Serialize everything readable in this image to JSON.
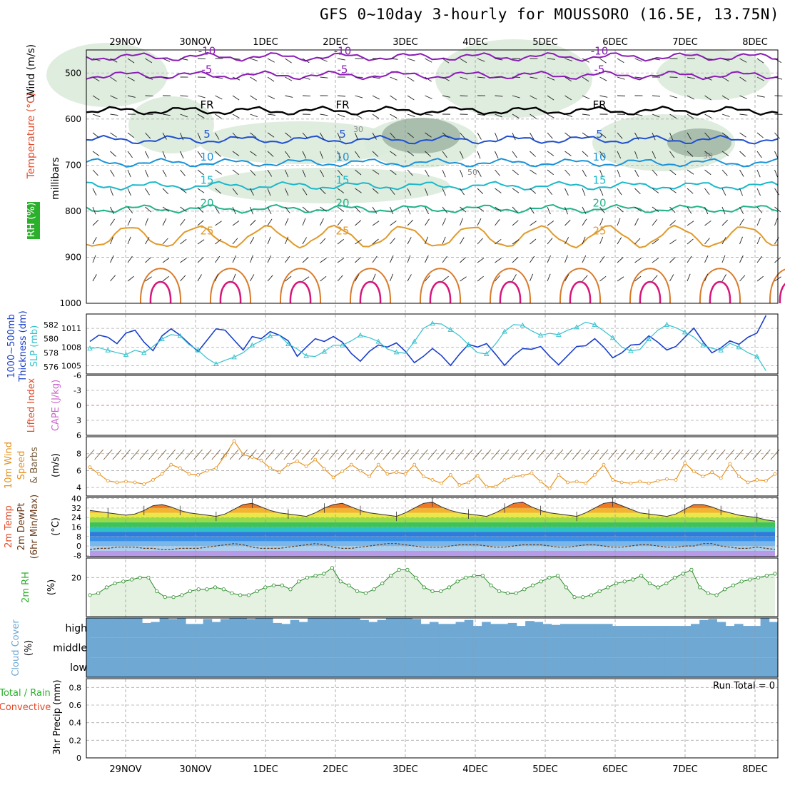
{
  "title": "GFS 0~10day 3-hourly for MOUSSORO (16.5E, 13.75N)",
  "chart_data": [
    {
      "type": "line",
      "panel": "upper-air",
      "x_date_labels": [
        "29NOV",
        "30NOV",
        "1DEC",
        "2DEC",
        "3DEC",
        "4DEC",
        "5DEC",
        "6DEC",
        "7DEC",
        "8DEC"
      ],
      "ylabel_parts": [
        "Wind (m/s)",
        "Temperature (°C)",
        "RH (%)",
        "millibars"
      ],
      "yticks": [
        "500",
        "600",
        "700",
        "800",
        "900",
        "1000"
      ],
      "ylim": [
        1000,
        450
      ],
      "temperature_isotherms": [
        {
          "label": "-10",
          "pressure": 465
        },
        {
          "label": "-5",
          "pressure": 505
        },
        {
          "label": "FR",
          "pressure": 582
        },
        {
          "label": "5",
          "pressure": 645
        },
        {
          "label": "10",
          "pressure": 695
        },
        {
          "label": "15",
          "pressure": 745
        },
        {
          "label": "20",
          "pressure": 795
        },
        {
          "label": "25",
          "pressure": 855
        }
      ],
      "rh_contour_labels": [
        "30",
        "50"
      ]
    },
    {
      "type": "line",
      "panel": "thickness-slp",
      "ylabel_parts": [
        "1000~500mb",
        "Thickness (dm)",
        "SLP (mb)"
      ],
      "left_ticks": [
        "576",
        "578",
        "580",
        "582"
      ],
      "right_ticks": [
        "1005",
        "1008",
        "1011"
      ],
      "series": [
        {
          "name": "Thickness",
          "unit": "dm",
          "values": [
            579.6,
            580.5,
            580.2,
            579.3,
            580.8,
            581.2,
            579.5,
            578.3,
            580.4,
            581.4,
            580.5,
            579.3,
            578.2,
            579.8,
            581.4,
            581.2,
            579.8,
            578.4,
            580.3,
            580.0,
            581.0,
            580.5,
            579.7,
            577.5,
            578.8,
            580.0,
            579.6,
            580.3,
            579.5,
            577.9,
            576.8,
            578.2,
            579.1,
            578.8,
            579.4,
            578.2,
            576.6,
            577.5,
            578.6,
            577.6,
            576.2,
            577.8,
            579.2,
            578.8,
            579.3,
            577.8,
            576.2,
            577.6,
            578.6,
            578.5,
            578.9,
            577.5,
            576.3,
            577.6,
            578.9,
            579.0,
            580.0,
            578.8,
            577.3,
            578.0,
            579.1,
            579.2,
            580.4,
            579.5,
            578.4,
            578.9,
            580.2,
            581.5,
            579.6,
            578.0,
            578.7,
            579.7,
            579.2,
            580.2,
            580.8,
            583.3
          ]
        },
        {
          "name": "SLP",
          "unit": "mb",
          "values": [
            1007.8,
            1007.9,
            1007.5,
            1007.1,
            1006.8,
            1007.5,
            1007.1,
            1008.1,
            1009.3,
            1010.0,
            1009.8,
            1008.4,
            1007.5,
            1006.2,
            1005.3,
            1005.9,
            1006.4,
            1007.1,
            1008.3,
            1009.0,
            1009.8,
            1009.9,
            1008.5,
            1007.7,
            1006.6,
            1006.5,
            1007.3,
            1008.3,
            1008.3,
            1009.0,
            1009.9,
            1009.5,
            1008.9,
            1007.7,
            1007.2,
            1007.0,
            1008.9,
            1011.0,
            1011.8,
            1011.7,
            1010.8,
            1009.8,
            1008.4,
            1007.1,
            1006.9,
            1008.5,
            1010.5,
            1011.6,
            1011.5,
            1010.6,
            1009.9,
            1010.2,
            1010.0,
            1010.7,
            1011.2,
            1012.0,
            1011.6,
            1010.6,
            1009.5,
            1008.0,
            1007.4,
            1007.6,
            1009.3,
            1010.7,
            1011.6,
            1011.1,
            1010.4,
            1009.6,
            1008.3,
            1007.8,
            1007.5,
            1008.6,
            1008.0,
            1007.1,
            1006.5,
            1004.2
          ]
        }
      ]
    },
    {
      "type": "line",
      "panel": "cape-li",
      "ylabel_parts": [
        "Lifted Index",
        "CAPE (J/kg)"
      ],
      "yticks": [
        "-6",
        "-3",
        "0",
        "3",
        "6"
      ],
      "ylim": [
        -6,
        6
      ],
      "series": [
        {
          "name": "Lifted Index",
          "values": []
        },
        {
          "name": "CAPE",
          "values": []
        }
      ]
    },
    {
      "type": "line",
      "panel": "10m-wind",
      "ylabel_parts": [
        "10m Wind",
        "Speed",
        "& Barbs",
        "(m/s)"
      ],
      "yticks": [
        "4",
        "6",
        "8"
      ],
      "ylim": [
        3,
        10
      ],
      "series": [
        {
          "name": "10m Wind Speed",
          "unit": "m/s",
          "values": [
            6.4,
            5.6,
            4.8,
            4.6,
            4.7,
            4.6,
            4.4,
            4.9,
            5.6,
            6.7,
            6.3,
            5.6,
            5.5,
            6.0,
            6.3,
            7.8,
            9.5,
            7.9,
            7.6,
            7.2,
            6.3,
            5.8,
            6.7,
            7.1,
            6.5,
            7.3,
            6.2,
            5.2,
            5.9,
            6.7,
            6.0,
            5.3,
            6.7,
            5.6,
            5.8,
            5.6,
            6.7,
            5.3,
            4.9,
            4.5,
            5.5,
            4.3,
            4.6,
            5.4,
            4.1,
            4.1,
            4.9,
            5.3,
            5.4,
            5.7,
            4.7,
            3.9,
            5.5,
            4.6,
            4.7,
            4.5,
            5.5,
            6.7,
            4.9,
            4.6,
            4.5,
            4.7,
            4.5,
            4.8,
            5.0,
            4.9,
            6.9,
            5.9,
            5.3,
            5.8,
            5.1,
            6.8,
            5.3,
            4.6,
            4.9,
            4.8,
            5.6
          ]
        }
      ]
    },
    {
      "type": "area",
      "panel": "2m-temp",
      "ylabel_parts": [
        "2m Temp",
        "2m DewPt",
        "(6hr Min/Max)",
        "(°C)"
      ],
      "yticks": [
        "-8",
        "0",
        "8",
        "16",
        "24",
        "32",
        "40"
      ],
      "ylim": [
        -8,
        40
      ],
      "series": [
        {
          "name": "2m Temp",
          "unit": "°C",
          "values": [
            30,
            29,
            28,
            27,
            26,
            27,
            30,
            34,
            35,
            33,
            30,
            28,
            27,
            26,
            25,
            27,
            31,
            35,
            36,
            33,
            30,
            28,
            27,
            26,
            25,
            28,
            32,
            35,
            36,
            33,
            30,
            28,
            27,
            26,
            25,
            28,
            32,
            36,
            37,
            33,
            30,
            28,
            27,
            26,
            25,
            28,
            32,
            36,
            37,
            33,
            30,
            28,
            27,
            26,
            25,
            28,
            32,
            36,
            37,
            34,
            31,
            28,
            27,
            26,
            25,
            27,
            31,
            35,
            35,
            33,
            30,
            28,
            26,
            25,
            24,
            22,
            21
          ]
        },
        {
          "name": "2m DewPt",
          "unit": "°C",
          "values": [
            -3,
            -2,
            -2,
            -1,
            -1,
            -1,
            -2,
            -2,
            -3,
            -3,
            -2,
            -2,
            -2,
            -1,
            0,
            1,
            2,
            1,
            -1,
            -2,
            -2,
            -2,
            -1,
            0,
            1,
            2,
            1,
            -1,
            -2,
            -2,
            -1,
            0,
            1,
            2,
            2,
            1,
            0,
            -1,
            -1,
            -1,
            0,
            1,
            1,
            1,
            0,
            -1,
            -1,
            0,
            1,
            1,
            1,
            0,
            -1,
            -1,
            0,
            1,
            1,
            0,
            -1,
            -1,
            0,
            1,
            1,
            0,
            -1,
            -1,
            0,
            0,
            2,
            2,
            0,
            -1,
            -2,
            -2,
            -1,
            -2,
            -3
          ]
        }
      ]
    },
    {
      "type": "area",
      "panel": "2m-rh",
      "ylabel_parts": [
        "2m RH",
        "(%)"
      ],
      "yticks": [
        "20"
      ],
      "ylim": [
        0,
        30
      ],
      "series": [
        {
          "name": "2m RH",
          "unit": "%",
          "values": [
            11,
            12,
            15,
            17,
            18,
            19,
            20,
            20,
            13,
            10,
            10,
            11,
            13,
            14,
            14,
            15,
            14,
            12,
            11,
            11,
            13,
            15,
            16,
            16,
            14,
            18,
            20,
            21,
            22,
            25,
            18,
            16,
            13,
            12,
            14,
            17,
            21,
            24,
            24,
            20,
            15,
            13,
            13,
            15,
            18,
            20,
            21,
            21,
            16,
            13,
            12,
            12,
            14,
            16,
            18,
            20,
            21,
            15,
            10,
            10,
            11,
            13,
            15,
            17,
            18,
            19,
            21,
            17,
            15,
            17,
            20,
            22,
            24,
            15,
            12,
            11,
            14,
            16,
            18,
            19,
            20,
            21,
            22
          ]
        }
      ]
    },
    {
      "type": "bar",
      "panel": "cloud-cover",
      "ylabel_parts": [
        "Cloud Cover",
        "(%)"
      ],
      "level_labels": [
        "high",
        "middle",
        "low"
      ],
      "series": [
        {
          "name": "high cloud cover",
          "unit": "%",
          "values": [
            100,
            98,
            98,
            100,
            100,
            100,
            75,
            80,
            100,
            95,
            100,
            70,
            70,
            95,
            80,
            95,
            100,
            100,
            95,
            100,
            100,
            75,
            70,
            90,
            80,
            100,
            100,
            100,
            100,
            100,
            100,
            90,
            80,
            90,
            100,
            100,
            100,
            95,
            70,
            80,
            70,
            70,
            80,
            90,
            60,
            80,
            70,
            70,
            75,
            60,
            85,
            80,
            70,
            65,
            70,
            70,
            70,
            70,
            70,
            70,
            60,
            60,
            60,
            60,
            60,
            60,
            60,
            60,
            60,
            70,
            90,
            95,
            80,
            60,
            70,
            60,
            60,
            100,
            80
          ]
        },
        {
          "name": "middle cloud cover",
          "unit": "%",
          "values": [
            100,
            100,
            100,
            100,
            100,
            100,
            100,
            100,
            100,
            100,
            100,
            100,
            100,
            100,
            100,
            100,
            100,
            100,
            100,
            100,
            100,
            100,
            100,
            100,
            100,
            100,
            100,
            100,
            100,
            100,
            100,
            100,
            100,
            100,
            100,
            100,
            100,
            100,
            100,
            100,
            100,
            100,
            100,
            100,
            100,
            100,
            100,
            100,
            100,
            100,
            100,
            100,
            100,
            100,
            100,
            100,
            100,
            100,
            100,
            100,
            100,
            100,
            100,
            100,
            100,
            100,
            100,
            100,
            100,
            100,
            100,
            100,
            100,
            100,
            100,
            100,
            100,
            100,
            100
          ]
        },
        {
          "name": "low cloud cover",
          "unit": "%",
          "values": [
            100,
            100,
            100,
            100,
            100,
            100,
            100,
            100,
            100,
            100,
            100,
            100,
            100,
            100,
            100,
            100,
            100,
            100,
            100,
            100,
            100,
            100,
            100,
            100,
            100,
            100,
            100,
            100,
            100,
            100,
            100,
            100,
            100,
            100,
            100,
            100,
            100,
            100,
            100,
            100,
            100,
            100,
            100,
            100,
            100,
            100,
            100,
            100,
            100,
            100,
            100,
            100,
            100,
            100,
            100,
            100,
            100,
            100,
            100,
            100,
            100,
            100,
            100,
            100,
            100,
            100,
            100,
            100,
            100,
            100,
            100,
            100,
            100,
            100,
            100,
            100,
            100,
            100,
            100
          ]
        }
      ]
    },
    {
      "type": "bar",
      "panel": "precip",
      "ylabel_parts": [
        "Total / Rain",
        "Convective",
        "3hr Precip (mm)"
      ],
      "yticks": [
        "0",
        "0.2",
        "0.4",
        "0.6",
        "0.8"
      ],
      "ylim": [
        0,
        0.9
      ],
      "annotation": "Run Total = 0",
      "series": [
        {
          "name": "Total precipitation",
          "unit": "mm",
          "values": []
        },
        {
          "name": "Convective precipitation",
          "unit": "mm",
          "values": []
        }
      ]
    }
  ]
}
